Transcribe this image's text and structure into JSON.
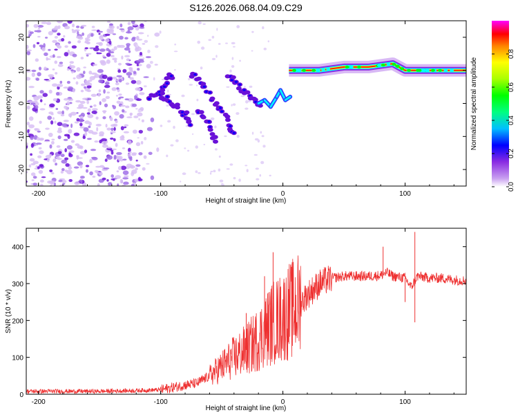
{
  "title": "S126.2026.068.04.09.C29",
  "colors": {
    "snr_line": "#ee3030",
    "axis": "#000000",
    "colormap": [
      "#ffffff",
      "#c9a0f0",
      "#8a2be2",
      "#0000ff",
      "#00ffff",
      "#00ff00",
      "#ffff00",
      "#ff0000",
      "#ff00ff"
    ]
  },
  "chart_data": [
    {
      "type": "heatmap",
      "name": "spectrogram",
      "xlabel": "Height of straight line (km)",
      "ylabel": "Frequency (Hz)",
      "xlim": [
        -210,
        150
      ],
      "ylim": [
        -25,
        25
      ],
      "xticks": [
        -200,
        -100,
        0,
        100
      ],
      "xtick_labels": [
        "-200",
        "-100",
        "0",
        "100"
      ],
      "yticks": [
        20,
        10,
        0,
        -10,
        -20
      ],
      "ytick_labels": [
        "20",
        "10",
        "0",
        "-10",
        "-20"
      ],
      "colorbar": {
        "label": "Normalized spectral amplitude",
        "range": [
          0,
          1
        ],
        "ticks": [
          0.0,
          0.2,
          0.4,
          0.6,
          0.8
        ],
        "tick_labels": [
          "0.0",
          "0.2",
          "0.4",
          "0.6",
          "0.8"
        ]
      },
      "features": [
        {
          "desc": "noise",
          "x": [
            -210,
            -100
          ],
          "y": [
            -25,
            25
          ],
          "amplitude": 0.15
        },
        {
          "desc": "tone",
          "x": [
            5,
            150
          ],
          "freq": [
            10,
            10,
            11,
            11,
            12,
            10,
            10
          ],
          "at": [
            5,
            30,
            50,
            70,
            90,
            100,
            150
          ],
          "amplitude": 0.85
        }
      ]
    },
    {
      "type": "line",
      "name": "snr",
      "xlabel": "Height of straight line (km)",
      "ylabel": "SNR (10 * v/v)",
      "xlim": [
        -210,
        150
      ],
      "ylim": [
        0,
        450
      ],
      "xticks": [
        -200,
        -100,
        0,
        100
      ],
      "xtick_labels": [
        "-200",
        "-100",
        "0",
        "100"
      ],
      "yticks": [
        0,
        100,
        200,
        300,
        400
      ],
      "ytick_labels": [
        "0",
        "100",
        "200",
        "300",
        "400"
      ],
      "series": [
        {
          "name": "SNR",
          "x": [
            -210,
            -150,
            -120,
            -100,
            -80,
            -70,
            -60,
            -50,
            -40,
            -30,
            -20,
            -15,
            -10,
            -5,
            0,
            5,
            10,
            15,
            20,
            30,
            40,
            50,
            60,
            70,
            80,
            85,
            90,
            100,
            105,
            110,
            120,
            130,
            140,
            150
          ],
          "values": [
            8,
            8,
            10,
            12,
            25,
            30,
            50,
            75,
            100,
            120,
            150,
            170,
            190,
            200,
            210,
            225,
            235,
            250,
            270,
            300,
            315,
            320,
            320,
            320,
            322,
            330,
            320,
            315,
            290,
            320,
            315,
            315,
            310,
            308
          ],
          "spikes": [
            {
              "x": -30,
              "y": 220
            },
            {
              "x": -15,
              "y": 320
            },
            {
              "x": -8,
              "y": 385
            },
            {
              "x": -2,
              "y": 290
            },
            {
              "x": 82,
              "y": 400
            },
            {
              "x": 100,
              "y": 250
            },
            {
              "x": 108,
              "y": 440
            },
            {
              "x": 108,
              "y": 195
            }
          ]
        }
      ]
    }
  ]
}
